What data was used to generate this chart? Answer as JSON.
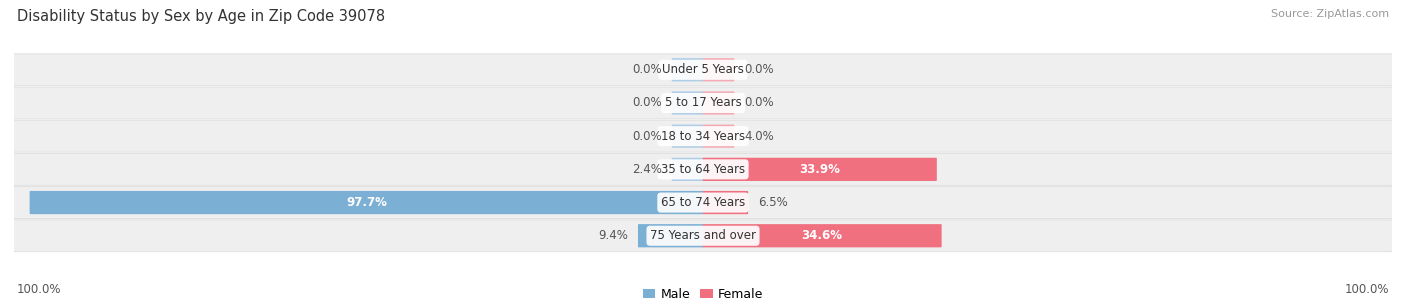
{
  "title": "Disability Status by Sex by Age in Zip Code 39078",
  "source": "Source: ZipAtlas.com",
  "categories": [
    "Under 5 Years",
    "5 to 17 Years",
    "18 to 34 Years",
    "35 to 64 Years",
    "65 to 74 Years",
    "75 Years and over"
  ],
  "male_values": [
    0.0,
    0.0,
    0.0,
    2.4,
    97.7,
    9.4
  ],
  "female_values": [
    0.0,
    0.0,
    4.0,
    33.9,
    6.5,
    34.6
  ],
  "male_color": "#7bafd4",
  "female_color": "#f07080",
  "male_light_color": "#aecde6",
  "female_light_color": "#f4aab4",
  "male_label": "Male",
  "female_label": "Female",
  "max_value": 100.0,
  "left_label": "100.0%",
  "right_label": "100.0%",
  "title_fontsize": 10.5,
  "source_fontsize": 8,
  "label_fontsize": 8.5,
  "category_fontsize": 8.5,
  "row_bg_color": "#efefef",
  "row_edge_color": "#dddddd"
}
